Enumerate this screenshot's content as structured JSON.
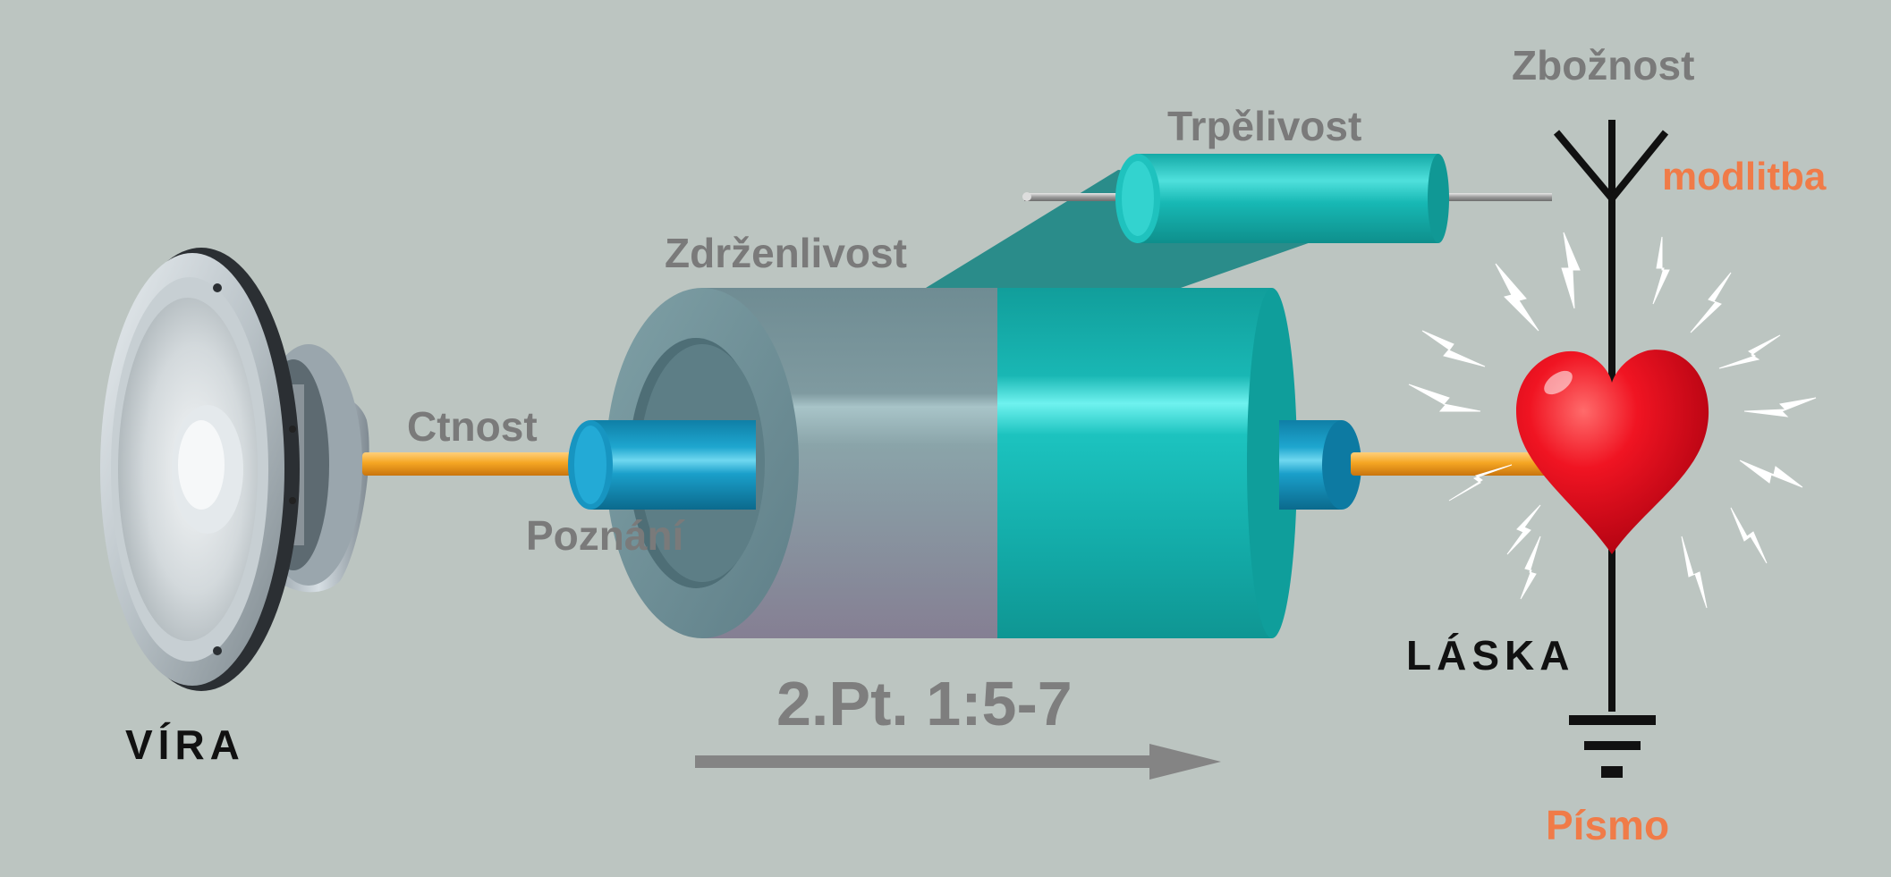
{
  "labels": {
    "vira": "VÍRA",
    "ctnost": "Ctnost",
    "poznani": "Poznání",
    "zdrzenlivost": "Zdrženlivost",
    "trpelivost": "Trpělivost",
    "zboznost": "Zbožnost",
    "modlitba": "modlitba",
    "laska": "LÁSKA",
    "pismo": "Písmo",
    "reference": "2.Pt. 1:5-7"
  },
  "colors": {
    "background": "#bcc5c1",
    "label_gray": "#7a7a7a",
    "accent_orange": "#f07b48",
    "wire_orange": "#f5a623",
    "teal": "#16b3b0",
    "heart_red": "#e0001b",
    "antenna": "#111111"
  },
  "icons": {
    "speaker": "speaker-icon",
    "heart": "heart-icon",
    "antenna": "antenna-icon",
    "ground": "ground-icon",
    "arrow": "arrow-right-icon"
  }
}
